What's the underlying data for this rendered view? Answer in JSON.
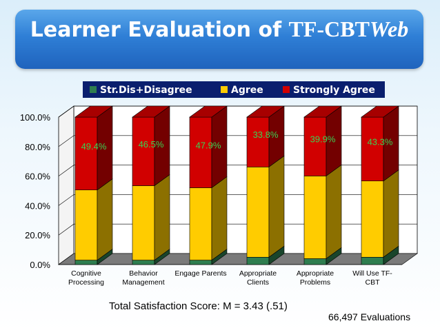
{
  "title": {
    "part1": "Learner Evaluation of ",
    "part2": "TF-CBT",
    "part3": "Web"
  },
  "caption": "Total Satisfaction Score: M = 3.43 (.51)",
  "evaluations": "66,497 Evaluations",
  "colors": {
    "disagree": "#2e7d4f",
    "agree": "#ffcc00",
    "strongly_agree": "#d10000",
    "label_text": "#39d353"
  },
  "chart_data": {
    "type": "bar",
    "stacked": true,
    "three_d": true,
    "categories": [
      [
        "Cognitive",
        "Processing"
      ],
      [
        "Behavior",
        "Management"
      ],
      [
        "Engage Parents"
      ],
      [
        "Appropriate",
        "Clients"
      ],
      [
        "Appropriate",
        "Problems"
      ],
      [
        "Will Use TF-",
        "CBT"
      ]
    ],
    "series": [
      {
        "name": "Str.Dis+Disagree",
        "values": [
          3.0,
          3.0,
          3.0,
          5.0,
          4.0,
          5.0
        ]
      },
      {
        "name": "Agree",
        "values": [
          47.6,
          50.5,
          49.1,
          61.2,
          56.1,
          51.7
        ]
      },
      {
        "name": "Strongly Agree",
        "values": [
          49.4,
          46.5,
          47.9,
          33.8,
          39.9,
          43.3
        ]
      }
    ],
    "data_labels": [
      "49.4%",
      "46.5%",
      "47.9%",
      "33.8%",
      "39.9%",
      "43.3%"
    ],
    "yticks": [
      "0.0%",
      "20.0%",
      "40.0%",
      "60.0%",
      "80.0%",
      "100.0%"
    ],
    "ylim": [
      0,
      100
    ],
    "legend_position": "top",
    "grid": true
  }
}
